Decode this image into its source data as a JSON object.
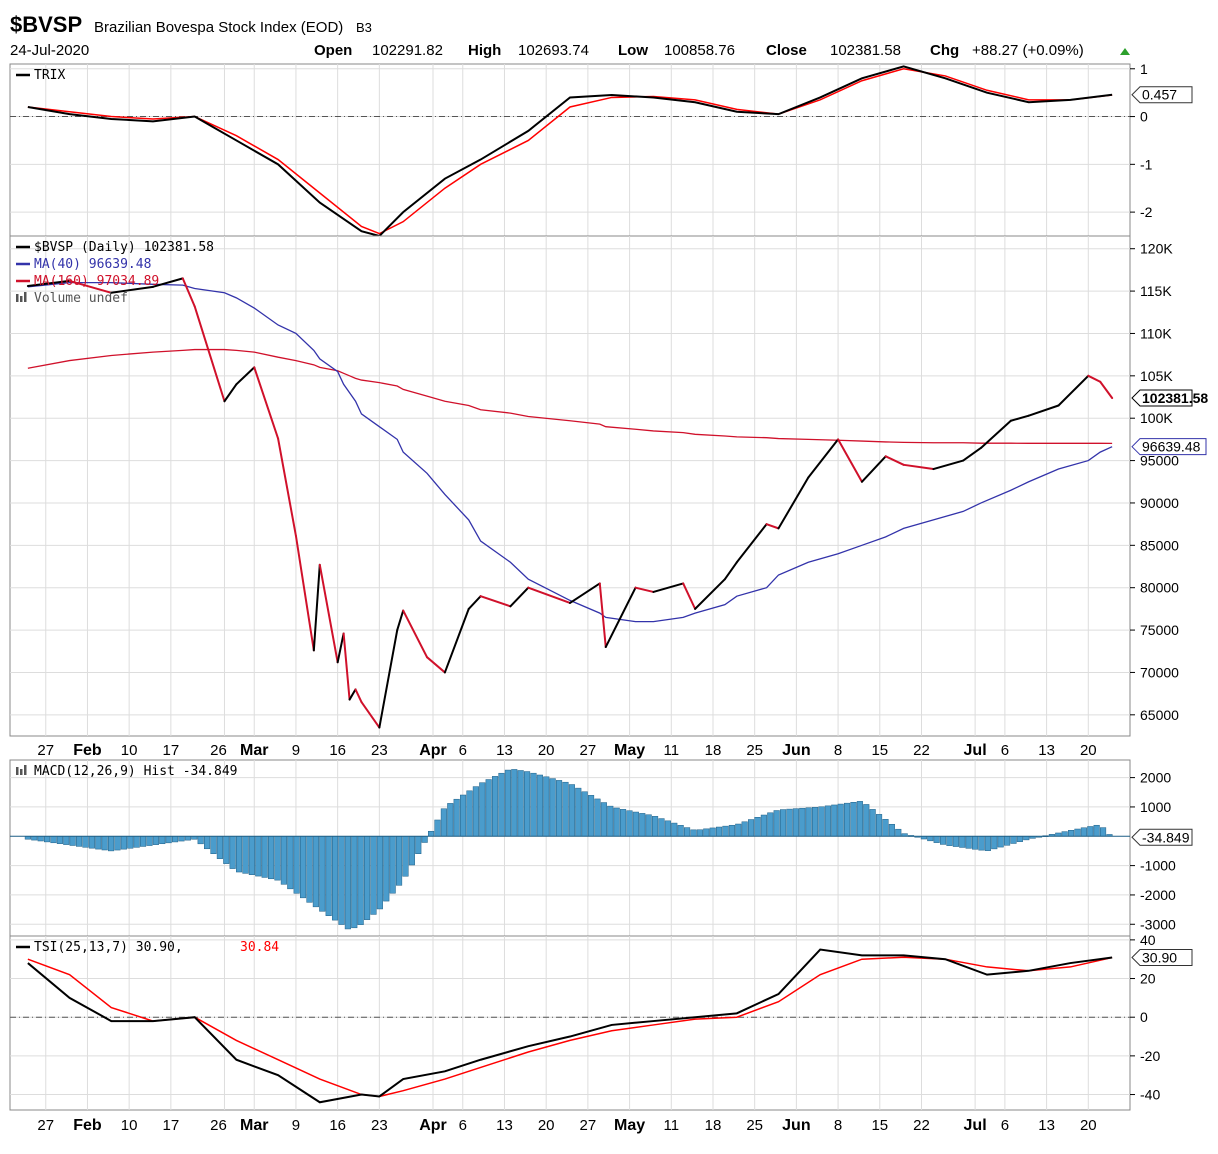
{
  "header": {
    "symbol": "$BVSP",
    "name": "Brazilian Bovespa Stock Index (EOD)",
    "exchange": "B3",
    "date": "24-Jul-2020",
    "open_label": "Open",
    "open": "102291.82",
    "high_label": "High",
    "high": "102693.74",
    "low_label": "Low",
    "low": "100858.76",
    "close_label": "Close",
    "close": "102381.58",
    "chg_label": "Chg",
    "chg": "+88.27 (+0.09%)",
    "chg_icon": "triangle-up-icon"
  },
  "colors": {
    "price_up": "#000000",
    "price_down": "#d0112b",
    "ma40": "#3333aa",
    "ma160": "#d0112b",
    "hist": "#4a9ccc",
    "signal": "#ff0000",
    "grid": "#dddddd"
  },
  "date_axis": {
    "labels": [
      "27",
      "Feb",
      "10",
      "17",
      "26",
      "Mar",
      "9",
      "16",
      "23",
      "Apr",
      "6",
      "13",
      "20",
      "27",
      "May",
      "11",
      "18",
      "25",
      "Jun",
      "8",
      "15",
      "22",
      "Jul",
      "6",
      "13",
      "20"
    ],
    "bold": [
      "Feb",
      "Mar",
      "Apr",
      "May",
      "Jun",
      "Jul"
    ]
  },
  "chart_data": [
    {
      "type": "line",
      "panel": "TRIX",
      "legend": [
        "TRIX"
      ],
      "ylim": [
        -2.5,
        1.1
      ],
      "y_ticks": [
        "1",
        "0",
        "-1",
        "-2"
      ],
      "current_value": "0.457",
      "grid": true,
      "x": [
        "2020-01-24",
        "2020-01-31",
        "2020-02-07",
        "2020-02-14",
        "2020-02-21",
        "2020-02-28",
        "2020-03-06",
        "2020-03-13",
        "2020-03-20",
        "2020-03-23",
        "2020-03-27",
        "2020-04-03",
        "2020-04-09",
        "2020-04-17",
        "2020-04-24",
        "2020-05-01",
        "2020-05-08",
        "2020-05-15",
        "2020-05-22",
        "2020-05-29",
        "2020-06-05",
        "2020-06-12",
        "2020-06-19",
        "2020-06-26",
        "2020-07-03",
        "2020-07-10",
        "2020-07-17",
        "2020-07-24"
      ],
      "series": [
        {
          "values": [
            0.2,
            0.05,
            -0.05,
            -0.1,
            0.0,
            -0.5,
            -1.0,
            -1.8,
            -2.4,
            -2.5,
            -2.0,
            -1.3,
            -0.9,
            -0.3,
            0.4,
            0.45,
            0.4,
            0.3,
            0.1,
            0.05,
            0.4,
            0.8,
            1.05,
            0.8,
            0.5,
            0.3,
            0.35,
            0.457
          ]
        },
        {
          "values": [
            0.2,
            0.1,
            0.0,
            -0.05,
            0.0,
            -0.4,
            -0.9,
            -1.6,
            -2.3,
            -2.45,
            -2.2,
            -1.5,
            -1.0,
            -0.5,
            0.2,
            0.4,
            0.42,
            0.35,
            0.15,
            0.05,
            0.35,
            0.75,
            1.0,
            0.85,
            0.55,
            0.35,
            0.35,
            0.45
          ]
        }
      ]
    },
    {
      "type": "line",
      "panel": "price",
      "legend": [
        "$BVSP (Daily) 102381.58",
        "MA(40) 96639.48",
        "MA(160) 97034.89",
        "Volume undef"
      ],
      "ylim": [
        62500,
        121500
      ],
      "y_ticks": [
        "120K",
        "115K",
        "110K",
        "105K",
        "100K",
        "95000",
        "90000",
        "85000",
        "80000",
        "75000",
        "70000",
        "65000"
      ],
      "current_value": "102381.58",
      "ma40_value": "96639.48",
      "grid": true,
      "x": [
        "2020-01-24",
        "2020-01-31",
        "2020-02-07",
        "2020-02-14",
        "2020-02-19",
        "2020-02-21",
        "2020-02-26",
        "2020-02-28",
        "2020-03-02",
        "2020-03-06",
        "2020-03-09",
        "2020-03-12",
        "2020-03-13",
        "2020-03-16",
        "2020-03-17",
        "2020-03-18",
        "2020-03-19",
        "2020-03-20",
        "2020-03-23",
        "2020-03-26",
        "2020-03-27",
        "2020-03-31",
        "2020-04-03",
        "2020-04-07",
        "2020-04-09",
        "2020-04-14",
        "2020-04-17",
        "2020-04-24",
        "2020-04-29",
        "2020-04-30",
        "2020-05-05",
        "2020-05-08",
        "2020-05-13",
        "2020-05-15",
        "2020-05-20",
        "2020-05-22",
        "2020-05-27",
        "2020-05-29",
        "2020-06-03",
        "2020-06-08",
        "2020-06-12",
        "2020-06-16",
        "2020-06-19",
        "2020-06-24",
        "2020-06-29",
        "2020-07-02",
        "2020-07-07",
        "2020-07-10",
        "2020-07-15",
        "2020-07-20",
        "2020-07-22",
        "2020-07-24"
      ],
      "series": [
        {
          "name": "$BVSP (Daily)",
          "values": [
            115600,
            116200,
            114800,
            115500,
            116500,
            113200,
            102000,
            104000,
            106000,
            97600,
            86100,
            72600,
            82700,
            71200,
            74600,
            66800,
            68000,
            66500,
            63500,
            75000,
            77300,
            71800,
            70000,
            77500,
            79000,
            77800,
            80000,
            78200,
            80500,
            73000,
            80000,
            79500,
            80500,
            77500,
            81000,
            83000,
            87500,
            87000,
            93000,
            97500,
            92500,
            95500,
            94500,
            94000,
            95000,
            96500,
            99700,
            100300,
            101500,
            105000,
            104300,
            102381
          ]
        },
        {
          "name": "MA(40)",
          "values": [
            115500,
            116000,
            116000,
            115800,
            115700,
            115300,
            114800,
            114200,
            113000,
            111000,
            110000,
            108000,
            107000,
            105500,
            104000,
            103000,
            102000,
            100500,
            99000,
            97500,
            96000,
            93500,
            91000,
            88000,
            85500,
            83000,
            81000,
            78500,
            77000,
            76500,
            76000,
            76000,
            76500,
            77000,
            78000,
            79000,
            80000,
            81500,
            83000,
            84000,
            85000,
            86000,
            87000,
            88000,
            89000,
            90000,
            91500,
            92500,
            94000,
            95000,
            96000,
            96639
          ]
        },
        {
          "name": "MA(160)",
          "values": [
            105900,
            106800,
            107400,
            107800,
            108000,
            108100,
            108100,
            108000,
            107800,
            107200,
            106800,
            106300,
            106000,
            105600,
            105300,
            105000,
            104700,
            104500,
            104200,
            103800,
            103400,
            102600,
            102000,
            101500,
            101000,
            100600,
            100200,
            99700,
            99300,
            99000,
            98700,
            98500,
            98300,
            98100,
            97900,
            97800,
            97700,
            97600,
            97500,
            97400,
            97300,
            97200,
            97150,
            97100,
            97100,
            97050,
            97050,
            97040,
            97040,
            97035,
            97035,
            97034
          ]
        }
      ]
    },
    {
      "type": "bar",
      "panel": "MACD",
      "legend": [
        "MACD(12,26,9) Hist -34.849"
      ],
      "ylim": [
        -3400,
        2600
      ],
      "y_ticks": [
        "2000",
        "1000",
        "-1000",
        "-2000",
        "-3000"
      ],
      "current_value": "-34.849",
      "grid": true,
      "x": [
        "2020-01-24",
        "2020-02-07",
        "2020-02-21",
        "2020-02-28",
        "2020-03-06",
        "2020-03-13",
        "2020-03-18",
        "2020-03-20",
        "2020-03-23",
        "2020-03-27",
        "2020-04-03",
        "2020-04-09",
        "2020-04-14",
        "2020-04-17",
        "2020-04-24",
        "2020-05-01",
        "2020-05-08",
        "2020-05-15",
        "2020-05-22",
        "2020-05-29",
        "2020-06-05",
        "2020-06-12",
        "2020-06-19",
        "2020-06-26",
        "2020-07-03",
        "2020-07-10",
        "2020-07-17",
        "2020-07-22",
        "2020-07-24"
      ],
      "values": [
        -100,
        -500,
        -100,
        -1200,
        -1500,
        -2500,
        -3200,
        -3000,
        -2500,
        -1500,
        1000,
        1800,
        2300,
        2200,
        1800,
        1000,
        700,
        200,
        400,
        900,
        1000,
        1200,
        100,
        -300,
        -500,
        -100,
        200,
        400,
        -35
      ]
    },
    {
      "type": "line",
      "panel": "TSI",
      "legend": [
        "TSI(25,13,7) 30.90,",
        "30.84"
      ],
      "ylim": [
        -48,
        42
      ],
      "y_ticks": [
        "40",
        "20",
        "0",
        "-20",
        "-40"
      ],
      "current_value": "30.90",
      "grid": true,
      "x": [
        "2020-01-24",
        "2020-01-31",
        "2020-02-07",
        "2020-02-14",
        "2020-02-21",
        "2020-02-28",
        "2020-03-06",
        "2020-03-13",
        "2020-03-20",
        "2020-03-23",
        "2020-03-27",
        "2020-04-03",
        "2020-04-09",
        "2020-04-17",
        "2020-04-24",
        "2020-05-01",
        "2020-05-08",
        "2020-05-15",
        "2020-05-22",
        "2020-05-29",
        "2020-06-05",
        "2020-06-12",
        "2020-06-19",
        "2020-06-26",
        "2020-07-03",
        "2020-07-10",
        "2020-07-17",
        "2020-07-24"
      ],
      "series": [
        {
          "values": [
            28,
            10,
            -2,
            -2,
            0,
            -22,
            -30,
            -44,
            -40,
            -41,
            -32,
            -28,
            -22,
            -15,
            -10,
            -4,
            -2,
            0,
            2,
            12,
            35,
            32,
            32,
            30,
            22,
            24,
            28,
            30.9
          ]
        },
        {
          "values": [
            30,
            22,
            5,
            -2,
            0,
            -12,
            -22,
            -32,
            -40,
            -41,
            -38,
            -32,
            -26,
            -18,
            -12,
            -7,
            -4,
            -1,
            0,
            8,
            22,
            30,
            31,
            30,
            26,
            24,
            26,
            30.84
          ]
        }
      ]
    }
  ]
}
